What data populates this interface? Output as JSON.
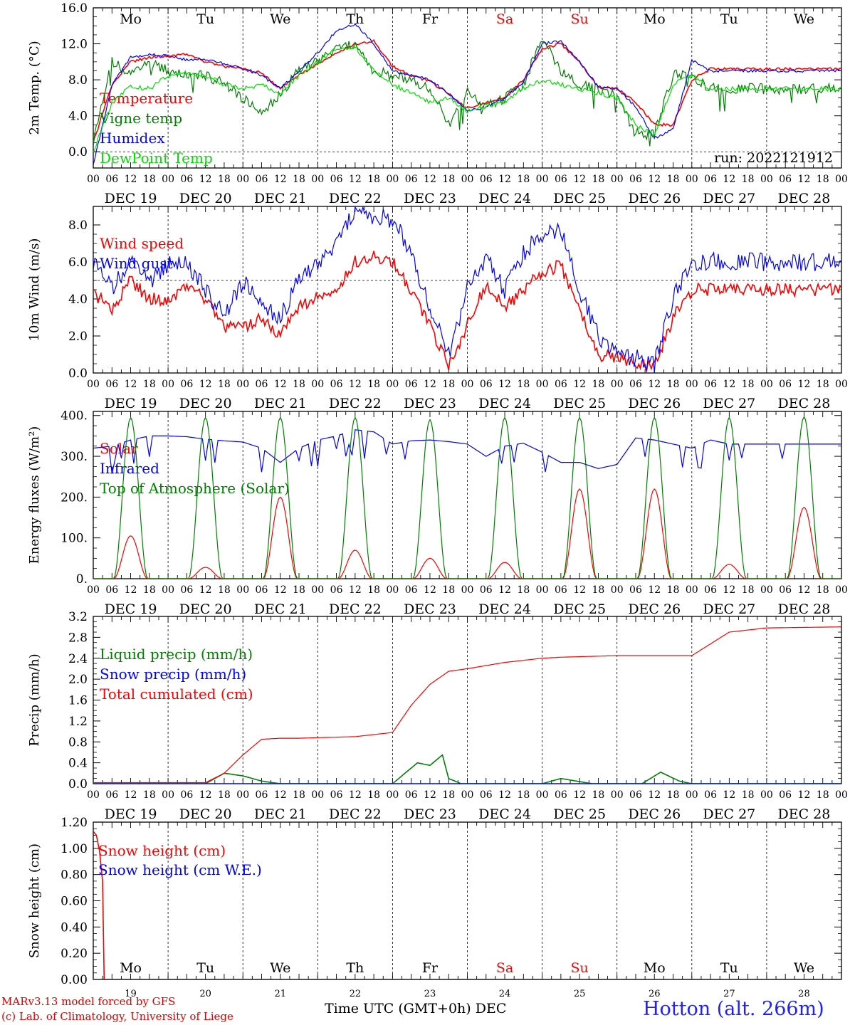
{
  "colors": {
    "red": "#ff0000",
    "blue": "#0000ff",
    "green": "#008000",
    "lightgreen": "#00e000",
    "purple": "#800080",
    "weekend": "#ff0000"
  },
  "days": [
    "Mo",
    "Tu",
    "We",
    "Th",
    "Fr",
    "Sa",
    "Su",
    "Mo",
    "Tu",
    "We"
  ],
  "day_colors": [
    "#000",
    "#000",
    "#000",
    "#000",
    "#000",
    "#ff0000",
    "#ff0000",
    "#000",
    "#000",
    "#000"
  ],
  "dates": [
    "DEC 19",
    "DEC 20",
    "DEC 21",
    "DEC 22",
    "DEC 23",
    "DEC 24",
    "DEC 25",
    "DEC 26",
    "DEC 27",
    "DEC 28"
  ],
  "hour_ticks": [
    "00",
    "06",
    "12",
    "18"
  ],
  "date_numbers": [
    "19",
    "20",
    "21",
    "22",
    "23",
    "24",
    "25",
    "26",
    "27",
    "28"
  ],
  "footer": {
    "credit_line1": "MARv3.13 model forced by GFS",
    "credit_line2": "(c) Lab. of Climatology, University of Liege",
    "xlabel": "Time UTC (GMT+0h)",
    "month": "DEC",
    "station": "Hotton (alt. 266m)"
  },
  "chart_data": [
    {
      "type": "line",
      "id": "temp",
      "ylabel": "2m Temp. (°C)",
      "ylim": [
        -1.8,
        16.0
      ],
      "yticks": [
        "0.0",
        "4.0",
        "8.0",
        "12.0",
        "16.0"
      ],
      "ytick_values": [
        0,
        4,
        8,
        12,
        16
      ],
      "ref_line": 0,
      "annotation": "run: 2022121912",
      "x_unit": "hours since DEC 19 00 UTC",
      "series": [
        {
          "name": "Temperature",
          "color": "#ff0000",
          "x": [
            0,
            6,
            12,
            18,
            24,
            30,
            36,
            42,
            48,
            54,
            60,
            66,
            72,
            78,
            84,
            90,
            96,
            102,
            108,
            114,
            120,
            126,
            132,
            138,
            144,
            150,
            156,
            162,
            168,
            174,
            180,
            186,
            192,
            198,
            204,
            210,
            216,
            222,
            228,
            234,
            240
          ],
          "y": [
            1.0,
            7.5,
            10.0,
            10.5,
            10.7,
            10.8,
            10.0,
            9.5,
            9.2,
            8.8,
            7.0,
            8.5,
            9.8,
            11.0,
            12.0,
            12.3,
            9.5,
            8.5,
            7.8,
            6.5,
            4.8,
            5.5,
            6.0,
            8.0,
            11.5,
            12.0,
            10.0,
            7.2,
            7.0,
            5.5,
            3.0,
            3.0,
            8.0,
            9.2,
            9.2,
            9.2,
            9.2,
            9.2,
            9.2,
            9.2,
            9.2
          ]
        },
        {
          "name": "Vigne temp",
          "color": "#008000",
          "x": [
            0,
            6,
            12,
            18,
            24,
            30,
            36,
            42,
            48,
            54,
            60,
            66,
            72,
            78,
            84,
            90,
            96,
            102,
            108,
            114,
            120,
            126,
            132,
            138,
            144,
            150,
            156,
            162,
            168,
            174,
            180,
            186,
            192,
            198,
            204,
            210,
            216,
            222,
            228,
            234,
            240
          ],
          "y": [
            1.0,
            10.0,
            8.5,
            10.0,
            9.0,
            8.5,
            8.5,
            7.5,
            6.0,
            4.0,
            6.5,
            9.0,
            10.0,
            11.5,
            11.8,
            9.0,
            8.5,
            8.0,
            7.0,
            3.0,
            6.5,
            5.0,
            6.0,
            7.5,
            12.8,
            9.0,
            7.5,
            7.0,
            6.2,
            2.0,
            2.0,
            8.5,
            8.5,
            7.0,
            7.0,
            7.0,
            7.0,
            7.0,
            7.0,
            7.0,
            7.0
          ]
        },
        {
          "name": "Humidex",
          "color": "#0000ff",
          "x": [
            0,
            6,
            12,
            18,
            24,
            30,
            36,
            42,
            48,
            54,
            60,
            66,
            72,
            78,
            84,
            90,
            96,
            102,
            108,
            114,
            120,
            126,
            132,
            138,
            144,
            150,
            156,
            162,
            168,
            174,
            180,
            186,
            192,
            198,
            204,
            210,
            216,
            222,
            228,
            234,
            240
          ],
          "y": [
            -1.5,
            7.5,
            10.5,
            10.8,
            10.7,
            10.2,
            10.3,
            9.8,
            9.2,
            8.5,
            7.0,
            9.0,
            11.0,
            13.5,
            14.2,
            12.0,
            9.0,
            8.5,
            8.0,
            6.5,
            4.5,
            5.0,
            6.0,
            7.8,
            12.0,
            12.3,
            10.0,
            7.2,
            7.0,
            5.0,
            1.5,
            2.5,
            10.2,
            9.0,
            9.0,
            9.0,
            9.0,
            9.0,
            9.0,
            9.0,
            9.0
          ]
        },
        {
          "name": "DewPoint Temp",
          "color": "#00e000",
          "x": [
            0,
            6,
            12,
            18,
            24,
            30,
            36,
            42,
            48,
            54,
            60,
            66,
            72,
            78,
            84,
            90,
            96,
            102,
            108,
            114,
            120,
            126,
            132,
            138,
            144,
            150,
            156,
            162,
            168,
            174,
            180,
            186,
            192,
            198,
            204,
            210,
            216,
            222,
            228,
            234,
            240
          ],
          "y": [
            0.0,
            5.5,
            7.3,
            7.0,
            8.5,
            8.8,
            8.5,
            7.5,
            7.0,
            7.5,
            6.5,
            8.5,
            10.0,
            11.5,
            11.7,
            9.0,
            7.5,
            6.5,
            5.5,
            6.0,
            4.5,
            5.0,
            5.5,
            7.0,
            8.0,
            7.5,
            7.0,
            6.5,
            6.0,
            3.0,
            1.8,
            7.5,
            8.5,
            7.0,
            7.0,
            7.0,
            7.0,
            7.0,
            7.0,
            7.0,
            7.0
          ]
        }
      ]
    },
    {
      "type": "line",
      "id": "wind",
      "ylabel": "10m Wind (m/s)",
      "ylim": [
        0,
        9.0
      ],
      "yticks": [
        "0.0",
        "2.0",
        "4.0",
        "6.0",
        "8.0"
      ],
      "ytick_values": [
        0,
        2,
        4,
        6,
        8
      ],
      "ref_line": 5,
      "x_unit": "hours since DEC 19 00 UTC",
      "series": [
        {
          "name": "Wind speed",
          "color": "#ff0000",
          "x": [
            0,
            6,
            12,
            18,
            24,
            30,
            36,
            42,
            48,
            54,
            60,
            66,
            72,
            78,
            84,
            90,
            96,
            102,
            108,
            114,
            120,
            126,
            132,
            138,
            144,
            150,
            156,
            162,
            168,
            174,
            180,
            186,
            192,
            198,
            204,
            210,
            216,
            222,
            228,
            234,
            240
          ],
          "y": [
            4.3,
            3.5,
            5.0,
            4.0,
            4.0,
            4.6,
            4.0,
            2.5,
            2.5,
            3.0,
            2.0,
            3.5,
            4.2,
            4.5,
            6.0,
            6.3,
            6.0,
            4.5,
            2.5,
            0.5,
            2.5,
            4.8,
            3.5,
            4.5,
            5.5,
            5.8,
            3.5,
            1.0,
            0.8,
            0.5,
            0.3,
            3.0,
            4.5,
            4.5,
            4.5,
            4.5,
            4.5,
            4.5,
            4.5,
            4.5,
            4.5
          ]
        },
        {
          "name": "Wind gust",
          "color": "#0000ff",
          "x": [
            0,
            6,
            12,
            18,
            24,
            30,
            36,
            42,
            48,
            54,
            60,
            66,
            72,
            78,
            84,
            90,
            96,
            102,
            108,
            114,
            120,
            126,
            132,
            138,
            144,
            150,
            156,
            162,
            168,
            174,
            180,
            186,
            192,
            198,
            204,
            210,
            216,
            222,
            228,
            234,
            240
          ],
          "y": [
            6.0,
            4.5,
            6.0,
            5.0,
            5.8,
            6.0,
            4.5,
            3.0,
            5.0,
            3.5,
            3.0,
            5.0,
            5.8,
            7.0,
            8.7,
            8.5,
            8.3,
            6.5,
            3.5,
            1.0,
            4.5,
            6.2,
            4.5,
            6.5,
            7.5,
            7.8,
            4.5,
            2.0,
            1.0,
            0.8,
            0.5,
            4.0,
            6.0,
            6.0,
            6.0,
            6.0,
            6.0,
            6.0,
            6.0,
            6.0,
            6.0
          ]
        }
      ]
    },
    {
      "type": "line",
      "id": "energy",
      "ylabel": "Energy fluxes (W/m²)",
      "ylim": [
        0,
        410
      ],
      "yticks": [
        "0.",
        "100.",
        "200.",
        "300.",
        "400."
      ],
      "ytick_values": [
        0,
        100,
        200,
        300,
        400
      ],
      "x_unit": "hours since DEC 19 00 UTC",
      "series": [
        {
          "name": "Solar",
          "color": "#ff0000",
          "daily_peak": [
            105,
            28,
            200,
            70,
            50,
            40,
            220,
            220,
            35,
            175
          ]
        },
        {
          "name": "Infrared",
          "color": "#0000ff",
          "x": [
            0,
            6,
            12,
            18,
            24,
            30,
            36,
            42,
            48,
            54,
            60,
            66,
            72,
            78,
            84,
            90,
            96,
            102,
            108,
            114,
            120,
            126,
            132,
            138,
            144,
            150,
            156,
            162,
            168,
            174,
            180,
            186,
            192,
            198,
            204,
            210,
            216,
            222,
            228,
            234,
            240
          ],
          "y": [
            320,
            325,
            340,
            350,
            350,
            348,
            342,
            338,
            335,
            320,
            285,
            320,
            340,
            350,
            365,
            360,
            330,
            338,
            340,
            336,
            330,
            300,
            325,
            332,
            310,
            285,
            285,
            270,
            280,
            345,
            340,
            330,
            320,
            340,
            330,
            330,
            330,
            330,
            330,
            330,
            330
          ]
        },
        {
          "name": "Top of Atmosphere (Solar)",
          "color": "#008000",
          "daily_peak": [
            395,
            395,
            395,
            395,
            390,
            395,
            395,
            395,
            395,
            397
          ]
        }
      ]
    },
    {
      "type": "line",
      "id": "precip",
      "ylabel": "Precip (mm/h)",
      "ylim": [
        0,
        3.2
      ],
      "yticks": [
        "0.0",
        "0.4",
        "0.8",
        "1.2",
        "1.6",
        "2.0",
        "2.4",
        "2.8",
        "3.2"
      ],
      "ytick_values": [
        0,
        0.4,
        0.8,
        1.2,
        1.6,
        2.0,
        2.4,
        2.8,
        3.2
      ],
      "x_unit": "hours since DEC 19 00 UTC",
      "series": [
        {
          "name": "Liquid precip (mm/h)",
          "color": "#008000",
          "x": [
            0,
            36,
            42,
            48,
            54,
            60,
            96,
            100,
            104,
            108,
            112,
            114,
            118,
            120,
            144,
            150,
            160,
            176,
            182,
            188,
            192,
            240
          ],
          "y": [
            0,
            0,
            0.2,
            0.15,
            0.05,
            0,
            0,
            0.2,
            0.4,
            0.35,
            0.55,
            0.1,
            0,
            0,
            0,
            0.1,
            0,
            0,
            0.22,
            0.05,
            0,
            0
          ]
        },
        {
          "name": "Snow precip (mm/h)",
          "color": "#0000ff",
          "x": [
            0,
            240
          ],
          "y": [
            0,
            0
          ]
        },
        {
          "name": "Total cumulated (cm)",
          "color": "#ff0000",
          "x": [
            0,
            36,
            42,
            48,
            54,
            60,
            66,
            72,
            84,
            96,
            102,
            108,
            114,
            120,
            132,
            144,
            150,
            156,
            168,
            180,
            192,
            204,
            216,
            240
          ],
          "y": [
            0.02,
            0.02,
            0.2,
            0.55,
            0.85,
            0.87,
            0.87,
            0.88,
            0.9,
            0.98,
            1.5,
            1.9,
            2.15,
            2.2,
            2.32,
            2.4,
            2.42,
            2.43,
            2.45,
            2.45,
            2.45,
            2.9,
            2.98,
            3.0
          ]
        }
      ]
    },
    {
      "type": "line",
      "id": "snow",
      "ylabel": "Snow height (cm)",
      "ylim": [
        0,
        1.2
      ],
      "yticks": [
        "0.00",
        "0.20",
        "0.40",
        "0.60",
        "0.80",
        "1.00",
        "1.20"
      ],
      "ytick_values": [
        0,
        0.2,
        0.4,
        0.6,
        0.8,
        1.0,
        1.2
      ],
      "x_unit": "hours since DEC 19 00 UTC",
      "series": [
        {
          "name": "Snow height (cm)",
          "color": "#ff0000",
          "x": [
            0,
            1,
            2,
            3,
            3.5,
            4,
            240
          ],
          "y": [
            1.13,
            1.1,
            0.98,
            0.75,
            0,
            0,
            0
          ]
        },
        {
          "name": "Snow height (cm W.E.)",
          "color": "#0000ff",
          "x": [
            0,
            240
          ],
          "y": [
            0,
            0
          ]
        }
      ]
    }
  ]
}
